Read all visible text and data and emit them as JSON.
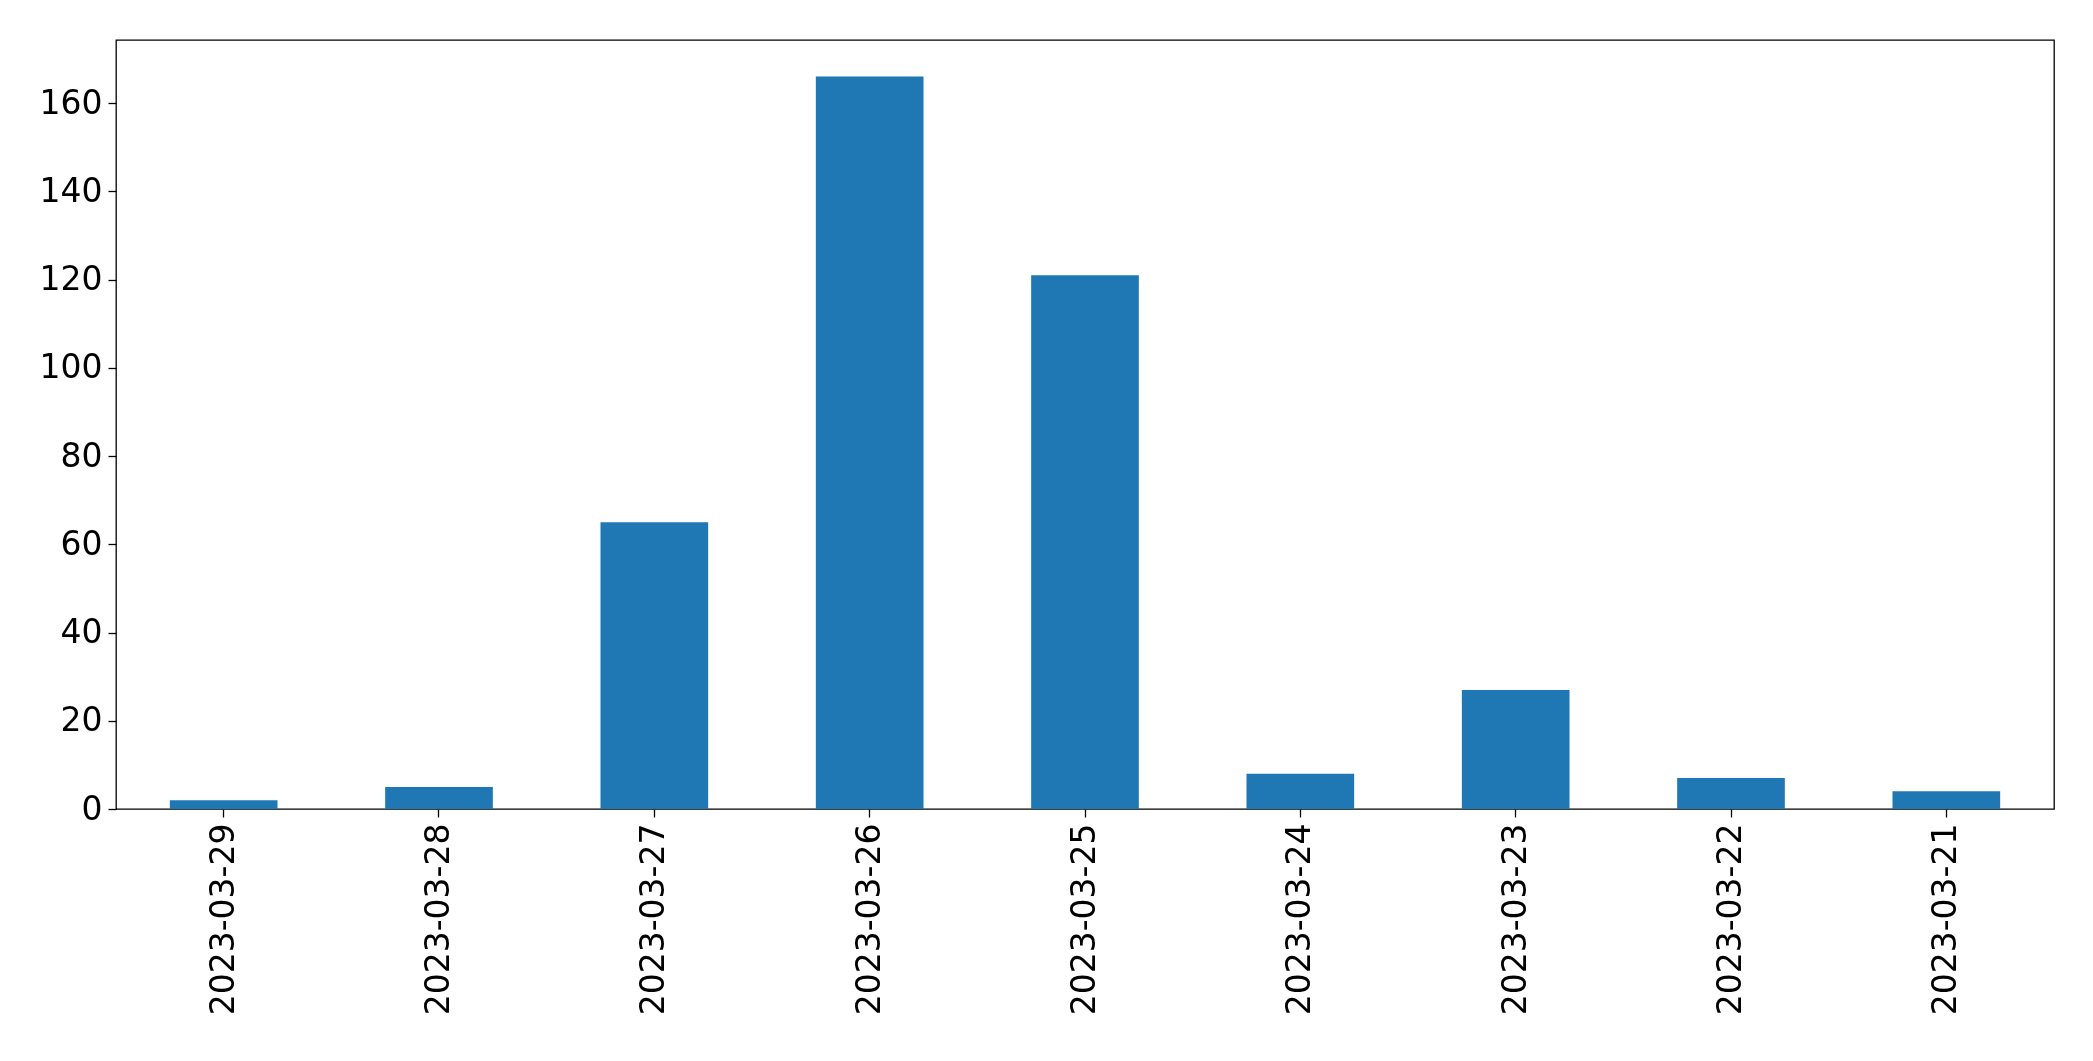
{
  "chart_data": {
    "type": "bar",
    "categories": [
      "2023-03-29",
      "2023-03-28",
      "2023-03-27",
      "2023-03-26",
      "2023-03-25",
      "2023-03-24",
      "2023-03-23",
      "2023-03-22",
      "2023-03-21"
    ],
    "values": [
      2,
      5,
      65,
      166,
      121,
      8,
      27,
      7,
      4
    ],
    "color": "#1f77b4",
    "ylim": [
      0,
      174.3
    ],
    "yticks": [
      0,
      20,
      40,
      60,
      80,
      100,
      120,
      140,
      160
    ],
    "grid": false
  }
}
